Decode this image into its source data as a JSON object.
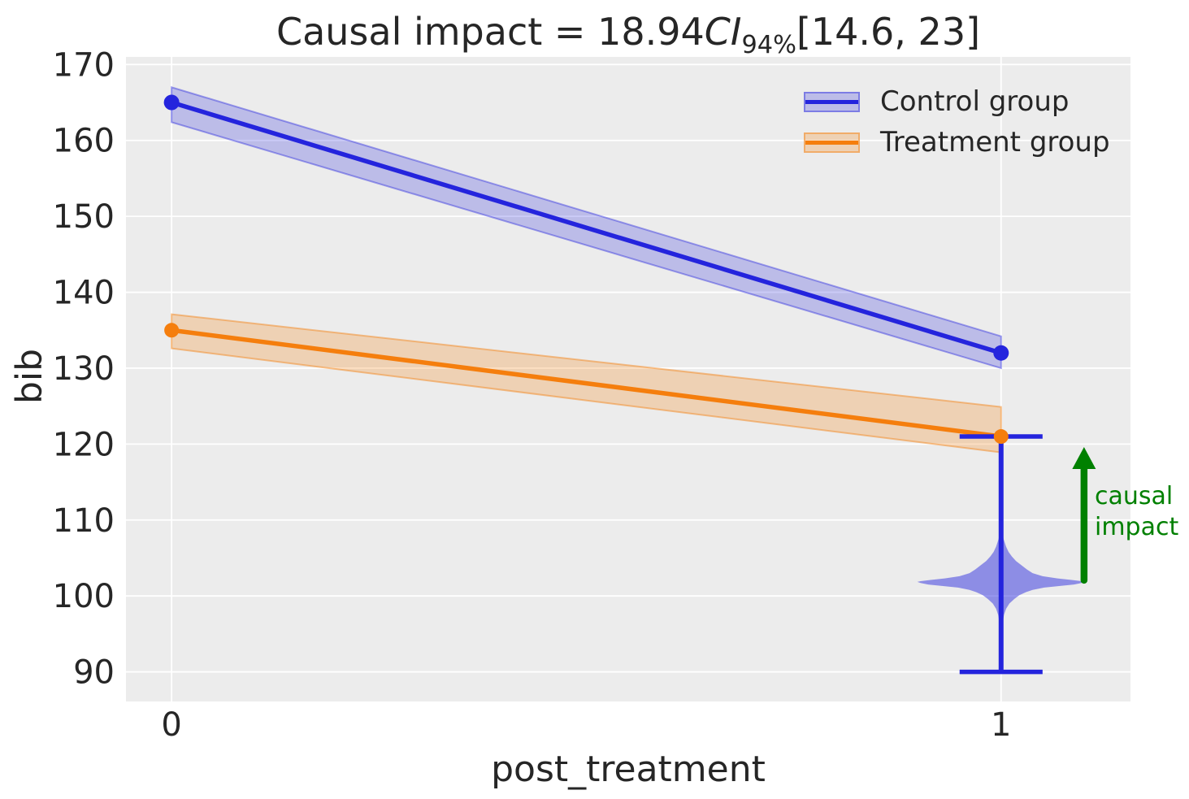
{
  "title": {
    "prefix": "Causal impact = 18.94",
    "ci": "CI",
    "subscript": "94%",
    "suffix": "[14.6, 23]"
  },
  "axes": {
    "xlabel": "post_treatment",
    "ylabel": "bib"
  },
  "legend": {
    "items": [
      {
        "label": "Control group",
        "color": "#2424dd",
        "band_fill": "rgba(36,36,221,0.24)",
        "band_edge": "rgba(36,36,221,0.42)"
      },
      {
        "label": "Treatment group",
        "color": "#f57e0d",
        "band_fill": "rgba(245,126,13,0.25)",
        "band_edge": "rgba(245,126,13,0.45)"
      }
    ]
  },
  "annotation": {
    "text": "causal\nimpact",
    "color": "#008000"
  },
  "chart_data": {
    "type": "line",
    "title": "Causal impact = 18.94 CI_94% [14.6, 23]",
    "xlabel": "post_treatment",
    "ylabel": "bib",
    "xlim": [
      -0.055,
      1.156
    ],
    "ylim": [
      86.1,
      171.0
    ],
    "x_ticks": [
      0,
      1
    ],
    "y_ticks": [
      90,
      100,
      110,
      120,
      130,
      140,
      150,
      160,
      170
    ],
    "grid": true,
    "background": "#ececec",
    "grid_color": "#ffffff",
    "text_color": "#262626",
    "legend_position": "upper right",
    "series": [
      {
        "name": "Control group",
        "x": [
          0,
          1
        ],
        "y": [
          165,
          132
        ],
        "ci_upper": [
          167.0,
          134.2
        ],
        "ci_lower": [
          162.4,
          130.0
        ],
        "color": "#2424dd",
        "band_fill": "rgba(36,36,221,0.24)",
        "band_edge": "rgba(36,36,221,0.42)"
      },
      {
        "name": "Treatment group",
        "x": [
          0,
          1
        ],
        "y": [
          135,
          121
        ],
        "ci_upper": [
          137.1,
          124.9
        ],
        "ci_lower": [
          132.6,
          118.9
        ],
        "color": "#f57e0d",
        "band_fill": "rgba(245,126,13,0.25)",
        "band_edge": "rgba(245,126,13,0.45)"
      }
    ],
    "counterfactual": {
      "x": 1,
      "mean": 102.06,
      "interval_low": 90,
      "interval_high": 121,
      "cap_halfwidth": 0.05,
      "color": "#2424dd",
      "violin_fill": "rgba(34,34,221,0.47)",
      "violin_profile": [
        [
          108.5,
          0.0015
        ],
        [
          107.5,
          0.003
        ],
        [
          106.5,
          0.006
        ],
        [
          105.8,
          0.009
        ],
        [
          105.2,
          0.013
        ],
        [
          104.6,
          0.018
        ],
        [
          104.0,
          0.025
        ],
        [
          103.5,
          0.031
        ],
        [
          103.0,
          0.038
        ],
        [
          102.6,
          0.05
        ],
        [
          102.3,
          0.068
        ],
        [
          102.1,
          0.085
        ],
        [
          101.95,
          0.097
        ],
        [
          101.85,
          0.101
        ],
        [
          101.7,
          0.097
        ],
        [
          101.5,
          0.088
        ],
        [
          101.3,
          0.07
        ],
        [
          101.1,
          0.052
        ],
        [
          100.8,
          0.038
        ],
        [
          100.5,
          0.03
        ],
        [
          100.1,
          0.022
        ],
        [
          99.6,
          0.016
        ],
        [
          99.0,
          0.01
        ],
        [
          98.3,
          0.006
        ],
        [
          97.5,
          0.0035
        ],
        [
          96.5,
          0.002
        ],
        [
          95.0,
          0.001
        ]
      ]
    },
    "impact_arrow": {
      "x": 1.1,
      "from": 102.06,
      "to": 121,
      "color": "#008000",
      "label": "causal\nimpact"
    }
  }
}
